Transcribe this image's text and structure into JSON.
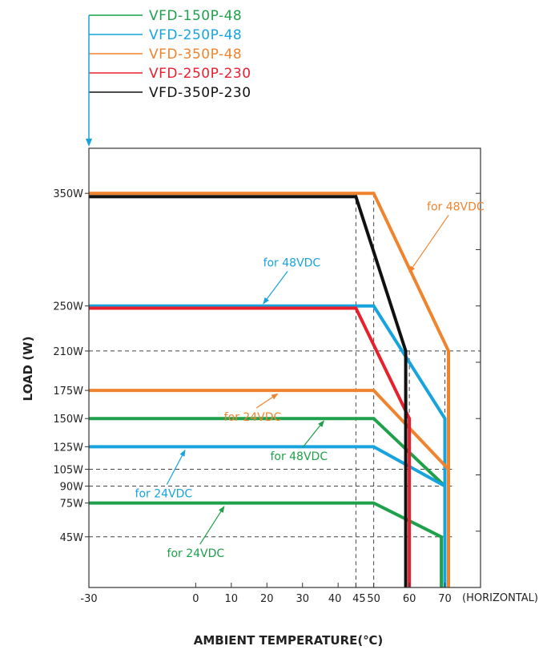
{
  "chart_data": {
    "type": "line",
    "xlabel": "AMBIENT TEMPERATURE(℃)",
    "ylabel": "LOAD (W)",
    "x_unit_note": "(HORIZONTAL)",
    "xlim": [
      -30,
      80
    ],
    "ylim": [
      0,
      390
    ],
    "x_ticks": [
      -30,
      0,
      10,
      20,
      30,
      40,
      45,
      50,
      60,
      70
    ],
    "y_ticks": [
      {
        "value": 350,
        "label": "350W"
      },
      {
        "value": 250,
        "label": "250W"
      },
      {
        "value": 210,
        "label": "210W"
      },
      {
        "value": 175,
        "label": "175W"
      },
      {
        "value": 150,
        "label": "150W"
      },
      {
        "value": 125,
        "label": "125W"
      },
      {
        "value": 105,
        "label": "105W"
      },
      {
        "value": 90,
        "label": "90W"
      },
      {
        "value": 75,
        "label": "75W"
      },
      {
        "value": 45,
        "label": "45W"
      }
    ],
    "series": [
      {
        "name": "VFD-150P-48",
        "color": "#1fa04a",
        "curves": [
          {
            "label": "for 48VDC",
            "points": [
              [
                -30,
                150
              ],
              [
                50,
                150
              ],
              [
                70,
                90
              ],
              [
                70,
                0
              ]
            ]
          },
          {
            "label": "for 24VDC",
            "points": [
              [
                -30,
                75
              ],
              [
                50,
                75
              ],
              [
                69,
                45
              ],
              [
                69,
                0
              ]
            ]
          }
        ]
      },
      {
        "name": "VFD-250P-48",
        "color": "#17a3de",
        "curves": [
          {
            "label": "for 48VDC",
            "points": [
              [
                -30,
                250
              ],
              [
                50,
                250
              ],
              [
                70,
                150
              ],
              [
                70,
                0
              ]
            ]
          },
          {
            "label": "for 24VDC",
            "points": [
              [
                -30,
                125
              ],
              [
                50,
                125
              ],
              [
                70,
                90
              ]
            ]
          }
        ]
      },
      {
        "name": "VFD-350P-48",
        "color": "#f0842e",
        "curves": [
          {
            "label": "for 48VDC",
            "points": [
              [
                -30,
                350
              ],
              [
                50,
                350
              ],
              [
                71,
                210
              ],
              [
                71,
                0
              ]
            ]
          },
          {
            "label": "for 24VDC",
            "points": [
              [
                -30,
                175
              ],
              [
                50,
                175
              ],
              [
                71,
                105
              ]
            ]
          }
        ]
      },
      {
        "name": "VFD-250P-230",
        "color": "#e8202e",
        "curves": [
          {
            "label": "",
            "points": [
              [
                -30,
                248
              ],
              [
                45,
                248
              ],
              [
                60,
                150
              ],
              [
                60,
                0
              ]
            ]
          }
        ]
      },
      {
        "name": "VFD-350P-230",
        "color": "#111111",
        "curves": [
          {
            "label": "",
            "points": [
              [
                -30,
                347
              ],
              [
                45,
                347
              ],
              [
                59,
                210
              ],
              [
                59,
                0
              ]
            ]
          }
        ]
      }
    ],
    "reference_lines": {
      "horizontal": [
        210,
        105,
        90,
        45
      ],
      "vertical": [
        45,
        50,
        60,
        70
      ]
    },
    "annotations": [
      {
        "text": "for 48VDC",
        "color": "#f0842e",
        "x": 73,
        "y": 335,
        "target_x": 60,
        "target_y": 280
      },
      {
        "text": "for 48VDC",
        "color": "#17a3de",
        "x": 27,
        "y": 285,
        "target_x": 19,
        "target_y": 252
      },
      {
        "text": "for 24VDC",
        "color": "#f0842e",
        "x": 16,
        "y": 148,
        "target_x": 23,
        "target_y": 172
      },
      {
        "text": "for 48VDC",
        "color": "#1fa04a",
        "x": 29,
        "y": 113,
        "target_x": 36,
        "target_y": 148
      },
      {
        "text": "for 24VDC",
        "color": "#17a3de",
        "x": -9,
        "y": 80,
        "target_x": -3,
        "target_y": 122
      },
      {
        "text": "for 24VDC",
        "color": "#1fa04a",
        "x": 0,
        "y": 27,
        "target_x": 8,
        "target_y": 72
      }
    ]
  }
}
